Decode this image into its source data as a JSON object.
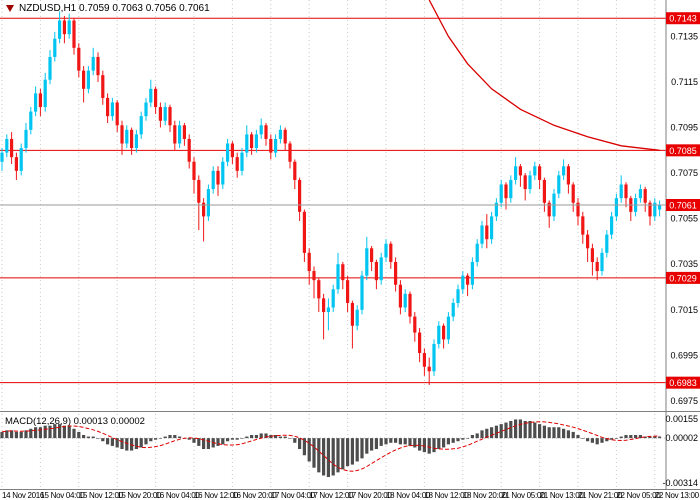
{
  "header": {
    "title": "NZDUSD,H1 0.7059 0.7063 0.7056 0.7061",
    "icon_color": "#a00000"
  },
  "macd": {
    "title_text": "MACD(12,26,9) 0.00013 0.00002",
    "name": "MACD(12,26,9)",
    "value_main": "0.00013",
    "value_signal": "0.00002",
    "scale": {
      "max": 0.00155,
      "min": -0.00314
    },
    "axis_ticks": [
      {
        "v": 0.00155,
        "label": "0.00155"
      },
      {
        "v": 2e-05,
        "label": "0.00002"
      },
      {
        "v": -0.00314,
        "label": "-0.00314"
      }
    ],
    "histogram": [
      0.0004,
      0.0005,
      0.0005,
      0.0004,
      0.0004,
      0.0005,
      0.0006,
      0.0007,
      0.0007,
      0.0008,
      0.0008,
      0.0009,
      0.0009,
      0.0008,
      0.0008,
      0.0006,
      0.0004,
      0.0002,
      0.0001,
      0.0001,
      0.0,
      -0.0002,
      -0.0004,
      -0.0005,
      -0.0006,
      -0.0007,
      -0.0008,
      -0.0008,
      -0.0007,
      -0.0006,
      -0.0004,
      -0.0002,
      -0.0001,
      0.0,
      0.0001,
      0.0002,
      0.0002,
      0.0001,
      0.0,
      -0.0001,
      -0.0003,
      -0.0005,
      -0.0007,
      -0.0007,
      -0.0006,
      -0.0005,
      -0.0004,
      -0.0002,
      -0.0001,
      -0.0001,
      0.0,
      0.0001,
      0.0002,
      0.0002,
      0.0003,
      0.0003,
      0.0002,
      0.0002,
      0.0001,
      0.0001,
      0.0,
      -0.0003,
      -0.0007,
      -0.0011,
      -0.0015,
      -0.0019,
      -0.0022,
      -0.0024,
      -0.0025,
      -0.0024,
      -0.0022,
      -0.002,
      -0.0018,
      -0.0017,
      -0.0015,
      -0.0013,
      -0.001,
      -0.0008,
      -0.0007,
      -0.0005,
      -0.0004,
      -0.0003,
      -0.0003,
      -0.0004,
      -0.0004,
      -0.0005,
      -0.0006,
      -0.0008,
      -0.0009,
      -0.001,
      -0.0009,
      -0.0007,
      -0.0006,
      -0.0004,
      -0.0003,
      -0.0002,
      -0.0001,
      0.0,
      0.0002,
      0.0003,
      0.0005,
      0.0006,
      0.0007,
      0.0008,
      0.0009,
      0.001,
      0.0011,
      0.0012,
      0.0012,
      0.0011,
      0.0011,
      0.001,
      0.0009,
      0.0008,
      0.0007,
      0.0007,
      0.0007,
      0.0006,
      0.0005,
      0.0004,
      0.0002,
      0.0,
      -0.0002,
      -0.0003,
      -0.0004,
      -0.0003,
      -0.0002,
      -0.0001,
      0.0,
      0.0001,
      0.0002,
      0.0002,
      0.0002,
      0.0002,
      0.0001,
      0.0001,
      0.0001,
      0.0001
    ]
  },
  "chart_data": {
    "type": "candlestick",
    "symbol": "NZDUSD",
    "timeframe": "H1",
    "title": "NZDUSD,H1 0.7059 0.7063 0.7056 0.7061",
    "ohlc": {
      "open": "0.7059",
      "high": "0.7063",
      "low": "0.7056",
      "close": "0.7061"
    },
    "y_axis": {
      "top_price": 0.7151,
      "bottom_price": 0.6971,
      "ticks": [
        "0.7135",
        "0.7115",
        "0.7095",
        "0.7075",
        "0.7055",
        "0.7035",
        "0.7015",
        "0.6995",
        "0.6975"
      ]
    },
    "x_axis": {
      "bars_per_label": 8,
      "labels": [
        "14 Nov 2016",
        "15 Nov 04:00",
        "15 Nov 12:00",
        "15 Nov 20:00",
        "16 Nov 04:00",
        "16 Nov 12:00",
        "16 Nov 20:00",
        "17 Nov 04:00",
        "17 Nov 12:00",
        "17 Nov 20:00",
        "18 Nov 04:00",
        "18 Nov 12:00",
        "18 Nov 20:00",
        "21 Nov 05:00",
        "21 Nov 13:00",
        "21 Nov 21:00",
        "22 Nov 05:00",
        "22 Nov 13:00"
      ]
    },
    "levels": [
      {
        "price": 0.7143,
        "label": "0.7143"
      },
      {
        "price": 0.7085,
        "label": "0.7085"
      },
      {
        "price": 0.7029,
        "label": "0.7029"
      },
      {
        "price": 0.6983,
        "label": "0.6983"
      }
    ],
    "current_price": {
      "price": 0.7061,
      "label": "0.7061"
    },
    "trendline": [
      [
        89,
        0.7151
      ],
      [
        93,
        0.7135
      ],
      [
        97,
        0.7123
      ],
      [
        102,
        0.7112
      ],
      [
        108,
        0.7103
      ],
      [
        115,
        0.7096
      ],
      [
        122,
        0.7091
      ],
      [
        129,
        0.7087
      ],
      [
        137,
        0.7085
      ]
    ],
    "colors": {
      "bull": "#00c5f0",
      "bear": "#f01616",
      "level": "#e80000",
      "badge_bg": "#e80000",
      "badge_text": "#ffffff",
      "current_line": "#9a9a9a",
      "trend": "#d80000",
      "macd_bar": "#4d4d4d",
      "macd_signal": "#e00000",
      "grid": "#c9c9c9",
      "frame": "#7f7f7f",
      "text": "#000000",
      "background": "#ffffff"
    },
    "candles": [
      [
        0.708,
        0.7086,
        0.7076,
        0.7084
      ],
      [
        0.7084,
        0.7092,
        0.7082,
        0.709
      ],
      [
        0.709,
        0.7093,
        0.7079,
        0.7082
      ],
      [
        0.7082,
        0.7084,
        0.7072,
        0.7076
      ],
      [
        0.7076,
        0.7088,
        0.7074,
        0.7086
      ],
      [
        0.7086,
        0.7097,
        0.7084,
        0.7094
      ],
      [
        0.7094,
        0.7104,
        0.7092,
        0.7102
      ],
      [
        0.7102,
        0.7113,
        0.71,
        0.711
      ],
      [
        0.711,
        0.7112,
        0.71,
        0.7104
      ],
      [
        0.7104,
        0.7119,
        0.7102,
        0.7116
      ],
      [
        0.7116,
        0.7129,
        0.7114,
        0.7126
      ],
      [
        0.7126,
        0.7137,
        0.7124,
        0.7134
      ],
      [
        0.7134,
        0.7146,
        0.7132,
        0.7142
      ],
      [
        0.7142,
        0.7144,
        0.7132,
        0.7136
      ],
      [
        0.7136,
        0.7145,
        0.7134,
        0.7142
      ],
      [
        0.7142,
        0.7143,
        0.7127,
        0.713
      ],
      [
        0.713,
        0.7132,
        0.7117,
        0.712
      ],
      [
        0.712,
        0.7122,
        0.7106,
        0.7112
      ],
      [
        0.7112,
        0.7122,
        0.711,
        0.712
      ],
      [
        0.712,
        0.713,
        0.7118,
        0.7126
      ],
      [
        0.7126,
        0.7128,
        0.7115,
        0.7118
      ],
      [
        0.7118,
        0.712,
        0.7105,
        0.7108
      ],
      [
        0.7108,
        0.711,
        0.7097,
        0.71
      ],
      [
        0.71,
        0.7108,
        0.7098,
        0.7106
      ],
      [
        0.7106,
        0.7107,
        0.7093,
        0.7096
      ],
      [
        0.7096,
        0.7098,
        0.7083,
        0.7088
      ],
      [
        0.7088,
        0.7096,
        0.7086,
        0.7094
      ],
      [
        0.7094,
        0.7095,
        0.7083,
        0.7086
      ],
      [
        0.7086,
        0.7094,
        0.7084,
        0.7092
      ],
      [
        0.7092,
        0.7102,
        0.709,
        0.71
      ],
      [
        0.71,
        0.7108,
        0.7098,
        0.7106
      ],
      [
        0.7106,
        0.7116,
        0.7104,
        0.7112
      ],
      [
        0.7112,
        0.7113,
        0.7101,
        0.7104
      ],
      [
        0.7104,
        0.7106,
        0.7095,
        0.7098
      ],
      [
        0.7098,
        0.7106,
        0.7096,
        0.7104
      ],
      [
        0.7104,
        0.7105,
        0.7093,
        0.7096
      ],
      [
        0.7096,
        0.7098,
        0.7085,
        0.7088
      ],
      [
        0.7088,
        0.7098,
        0.7086,
        0.7096
      ],
      [
        0.7096,
        0.7097,
        0.7087,
        0.709
      ],
      [
        0.709,
        0.7092,
        0.7077,
        0.708
      ],
      [
        0.708,
        0.7082,
        0.7066,
        0.7072
      ],
      [
        0.7072,
        0.7074,
        0.705,
        0.7062
      ],
      [
        0.7062,
        0.7064,
        0.7045,
        0.7056
      ],
      [
        0.7056,
        0.707,
        0.7054,
        0.7068
      ],
      [
        0.7068,
        0.7078,
        0.7066,
        0.7076
      ],
      [
        0.7076,
        0.7078,
        0.7065,
        0.707
      ],
      [
        0.707,
        0.7082,
        0.7068,
        0.708
      ],
      [
        0.708,
        0.709,
        0.7078,
        0.7088
      ],
      [
        0.7088,
        0.7089,
        0.7079,
        0.7082
      ],
      [
        0.7082,
        0.7084,
        0.7073,
        0.7076
      ],
      [
        0.7076,
        0.7086,
        0.7074,
        0.7084
      ],
      [
        0.7084,
        0.7096,
        0.7082,
        0.7092
      ],
      [
        0.7092,
        0.7093,
        0.7083,
        0.7086
      ],
      [
        0.7086,
        0.7094,
        0.7084,
        0.7092
      ],
      [
        0.7092,
        0.7099,
        0.709,
        0.7096
      ],
      [
        0.7096,
        0.7097,
        0.7087,
        0.709
      ],
      [
        0.709,
        0.7092,
        0.7081,
        0.7084
      ],
      [
        0.7084,
        0.7092,
        0.7082,
        0.709
      ],
      [
        0.709,
        0.7096,
        0.7088,
        0.7094
      ],
      [
        0.7094,
        0.7095,
        0.7085,
        0.7088
      ],
      [
        0.7088,
        0.7089,
        0.7077,
        0.708
      ],
      [
        0.708,
        0.7081,
        0.7068,
        0.7072
      ],
      [
        0.7072,
        0.7073,
        0.7054,
        0.7058
      ],
      [
        0.7058,
        0.7059,
        0.7036,
        0.704
      ],
      [
        0.704,
        0.7042,
        0.7026,
        0.7032
      ],
      [
        0.7032,
        0.7034,
        0.702,
        0.7028
      ],
      [
        0.7028,
        0.7029,
        0.7014,
        0.702
      ],
      [
        0.702,
        0.7022,
        0.7002,
        0.7014
      ],
      [
        0.7014,
        0.702,
        0.7006,
        0.7016
      ],
      [
        0.7016,
        0.7026,
        0.7014,
        0.7024
      ],
      [
        0.7024,
        0.704,
        0.7022,
        0.7035
      ],
      [
        0.7035,
        0.7036,
        0.7024,
        0.7028
      ],
      [
        0.7028,
        0.703,
        0.7014,
        0.7018
      ],
      [
        0.7018,
        0.7019,
        0.6998,
        0.7008
      ],
      [
        0.7008,
        0.7017,
        0.7006,
        0.7015
      ],
      [
        0.7015,
        0.7032,
        0.7013,
        0.703
      ],
      [
        0.703,
        0.7047,
        0.7028,
        0.7042
      ],
      [
        0.7042,
        0.7043,
        0.7032,
        0.7036
      ],
      [
        0.7036,
        0.7037,
        0.7024,
        0.7028
      ],
      [
        0.7028,
        0.704,
        0.7026,
        0.7038
      ],
      [
        0.7038,
        0.7046,
        0.7036,
        0.7044
      ],
      [
        0.7044,
        0.7045,
        0.7033,
        0.7036
      ],
      [
        0.7036,
        0.7038,
        0.7023,
        0.7026
      ],
      [
        0.7026,
        0.7028,
        0.7013,
        0.7016
      ],
      [
        0.7016,
        0.7024,
        0.7014,
        0.7022
      ],
      [
        0.7022,
        0.7023,
        0.7009,
        0.7012
      ],
      [
        0.7012,
        0.7014,
        0.7001,
        0.7005
      ],
      [
        0.7005,
        0.7007,
        0.6992,
        0.6996
      ],
      [
        0.6996,
        0.6998,
        0.6986,
        0.699
      ],
      [
        0.699,
        0.6994,
        0.6982,
        0.6988
      ],
      [
        0.6988,
        0.7002,
        0.6986,
        0.7
      ],
      [
        0.7,
        0.701,
        0.6998,
        0.7008
      ],
      [
        0.7008,
        0.7009,
        0.6998,
        0.7002
      ],
      [
        0.7002,
        0.7014,
        0.7,
        0.7012
      ],
      [
        0.7012,
        0.702,
        0.701,
        0.7018
      ],
      [
        0.7018,
        0.7026,
        0.7016,
        0.7024
      ],
      [
        0.7024,
        0.7032,
        0.7022,
        0.703
      ],
      [
        0.703,
        0.7031,
        0.7021,
        0.7026
      ],
      [
        0.7026,
        0.7038,
        0.7024,
        0.7036
      ],
      [
        0.7036,
        0.7046,
        0.7034,
        0.7044
      ],
      [
        0.7044,
        0.7054,
        0.7042,
        0.7052
      ],
      [
        0.7052,
        0.7057,
        0.7042,
        0.7046
      ],
      [
        0.7046,
        0.7058,
        0.7044,
        0.7056
      ],
      [
        0.7056,
        0.7064,
        0.7054,
        0.7062
      ],
      [
        0.7062,
        0.7072,
        0.706,
        0.707
      ],
      [
        0.707,
        0.7071,
        0.7059,
        0.7064
      ],
      [
        0.7064,
        0.7074,
        0.7062,
        0.7072
      ],
      [
        0.7072,
        0.7082,
        0.707,
        0.7078
      ],
      [
        0.7078,
        0.7079,
        0.7069,
        0.7074
      ],
      [
        0.7074,
        0.7075,
        0.7063,
        0.7068
      ],
      [
        0.7068,
        0.7076,
        0.7066,
        0.7074
      ],
      [
        0.7074,
        0.708,
        0.7072,
        0.7078
      ],
      [
        0.7078,
        0.7079,
        0.7068,
        0.7072
      ],
      [
        0.7072,
        0.7073,
        0.7058,
        0.7062
      ],
      [
        0.7062,
        0.7063,
        0.7051,
        0.7056
      ],
      [
        0.7056,
        0.7068,
        0.7054,
        0.7066
      ],
      [
        0.7066,
        0.7076,
        0.7064,
        0.7074
      ],
      [
        0.7074,
        0.7081,
        0.7072,
        0.7078
      ],
      [
        0.7078,
        0.7079,
        0.7066,
        0.707
      ],
      [
        0.707,
        0.7071,
        0.7058,
        0.7062
      ],
      [
        0.7062,
        0.7064,
        0.7052,
        0.7056
      ],
      [
        0.7056,
        0.7058,
        0.7044,
        0.7048
      ],
      [
        0.7048,
        0.705,
        0.7036,
        0.7042
      ],
      [
        0.7042,
        0.7044,
        0.703,
        0.7036
      ],
      [
        0.7036,
        0.7038,
        0.7028,
        0.7032
      ],
      [
        0.7032,
        0.7042,
        0.703,
        0.704
      ],
      [
        0.704,
        0.705,
        0.7038,
        0.7048
      ],
      [
        0.7048,
        0.7058,
        0.7046,
        0.7056
      ],
      [
        0.7056,
        0.7066,
        0.7054,
        0.7064
      ],
      [
        0.7064,
        0.7074,
        0.7062,
        0.707
      ],
      [
        0.707,
        0.7071,
        0.706,
        0.7064
      ],
      [
        0.7064,
        0.7065,
        0.7054,
        0.7058
      ],
      [
        0.7058,
        0.7066,
        0.7056,
        0.7064
      ],
      [
        0.7064,
        0.707,
        0.7062,
        0.7068
      ],
      [
        0.7068,
        0.7069,
        0.7058,
        0.7062
      ],
      [
        0.7062,
        0.7063,
        0.7052,
        0.7056
      ],
      [
        0.7056,
        0.7064,
        0.7054,
        0.7062
      ],
      [
        0.7059,
        0.7063,
        0.7056,
        0.7061
      ]
    ]
  }
}
